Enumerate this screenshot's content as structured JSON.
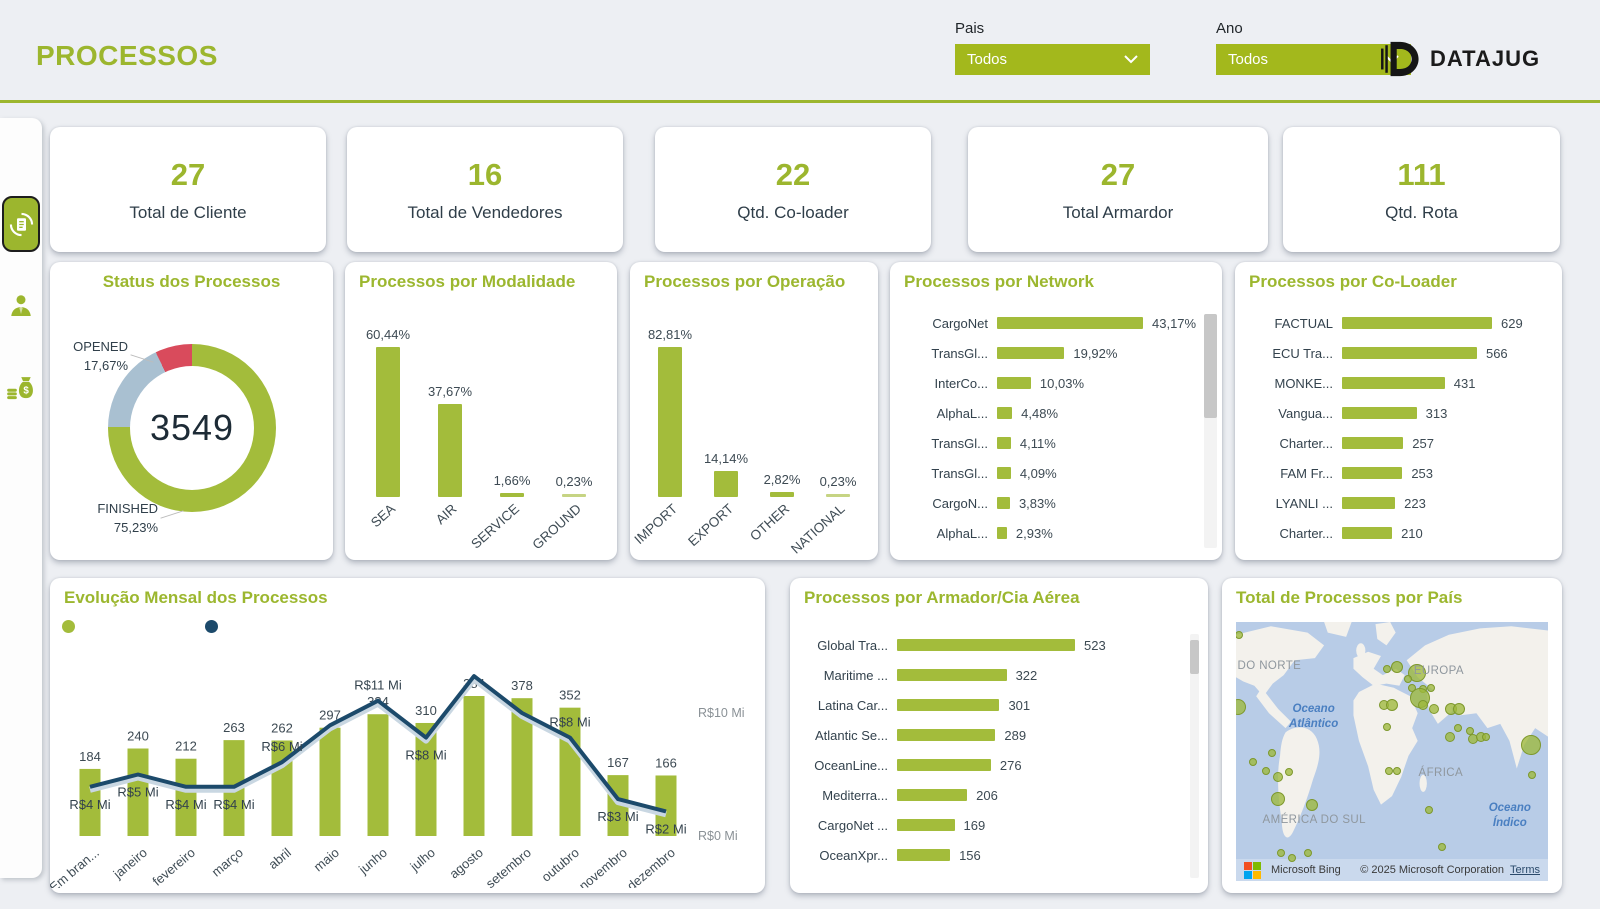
{
  "header": {
    "title": "PROCESSOS",
    "brand": "DATAJUG",
    "filters": [
      {
        "label": "Pais",
        "value": "Todos"
      },
      {
        "label": "Ano",
        "value": "Todos"
      }
    ]
  },
  "colors": {
    "accent_green": "#9cb62e",
    "bar_green": "#a3bc3b",
    "navy": "#1c4a6b",
    "halo_blue": "#c9d7e2",
    "donut_gray": "#a9c0d1",
    "donut_red": "#d94b5c",
    "dropdown_green": "#a3b81c",
    "text_dark": "#31404b",
    "axis_gray": "#8a9196",
    "water_blue": "#b8cce7",
    "land": "#f3f1ec"
  },
  "kpis": [
    {
      "value": "27",
      "label": "Total de Cliente"
    },
    {
      "value": "16",
      "label": "Total de Vendedores"
    },
    {
      "value": "22",
      "label": "Qtd. Co-loader"
    },
    {
      "value": "27",
      "label": "Total Armardor"
    },
    {
      "value": "111",
      "label": "Qtd. Rota"
    }
  ],
  "chart_data": [
    {
      "id": "status",
      "type": "pie",
      "title": "Status dos Processos",
      "center_total": "3549",
      "slices": [
        {
          "label": "FINISHED",
          "display": "75,23%",
          "pct": 75.23,
          "color": "#a3bc3b"
        },
        {
          "label": "OPENED",
          "display": "17,67%",
          "pct": 17.67,
          "color": "#a9c0d1"
        },
        {
          "label": "",
          "display": "",
          "pct": 7.1,
          "color": "#d94b5c"
        }
      ]
    },
    {
      "id": "modalidade",
      "type": "bar",
      "title": "Processos por Modalidade",
      "categories": [
        "SEA",
        "AIR",
        "SERVICE",
        "GROUND"
      ],
      "values": [
        60.44,
        37.67,
        1.66,
        0.23
      ],
      "labels": [
        "60,44%",
        "37,67%",
        "1,66%",
        "0,23%"
      ]
    },
    {
      "id": "operacao",
      "type": "bar",
      "title": "Processos por Operação",
      "categories": [
        "IMPORT",
        "EXPORT",
        "OTHER",
        "NATIONAL"
      ],
      "values": [
        82.81,
        14.14,
        2.82,
        0.23
      ],
      "labels": [
        "82,81%",
        "14,14%",
        "2,82%",
        "0,23%"
      ]
    },
    {
      "id": "network",
      "type": "barh",
      "title": "Processos por Network",
      "categories": [
        "CargoNet",
        "TransGl...",
        "InterCo...",
        "AlphaL...",
        "TransGl...",
        "TransGl...",
        "CargoN...",
        "AlphaL..."
      ],
      "values": [
        43.17,
        19.92,
        10.03,
        4.48,
        4.11,
        4.09,
        3.83,
        2.93
      ],
      "labels": [
        "43,17%",
        "19,92%",
        "10,03%",
        "4,48%",
        "4,11%",
        "4,09%",
        "3,83%",
        "2,93%"
      ]
    },
    {
      "id": "coloader",
      "type": "barh",
      "title": "Processos por Co-Loader",
      "categories": [
        "FACTUAL",
        "ECU Tra...",
        "MONKE...",
        "Vangua...",
        "Charter...",
        "FAM Fr...",
        "LYANLI ...",
        "Charter..."
      ],
      "values": [
        629,
        566,
        431,
        313,
        257,
        253,
        223,
        210
      ],
      "labels": [
        "629",
        "566",
        "431",
        "313",
        "257",
        "253",
        "223",
        "210"
      ]
    },
    {
      "id": "evolucao",
      "type": "combo",
      "title": "Evolução Mensal dos Processos",
      "categories": [
        "(Em bran...",
        "janeiro",
        "fevereiro",
        "março",
        "abril",
        "maio",
        "junho",
        "julho",
        "agosto",
        "setembro",
        "outubro",
        "novembro",
        "dezembro"
      ],
      "bars": {
        "values": [
          184,
          240,
          212,
          263,
          262,
          297,
          334,
          310,
          384,
          378,
          352,
          167,
          166
        ]
      },
      "line": {
        "values": [
          4,
          5,
          4,
          4,
          6,
          9,
          11,
          8,
          13,
          10,
          8,
          3,
          2
        ],
        "labels": [
          "R$4 Mi",
          "R$5 Mi",
          "R$4 Mi",
          "R$4 Mi",
          "R$6 Mi",
          "",
          "R$11 Mi",
          "R$8 Mi",
          "",
          "",
          "R$8 Mi",
          "R$3 Mi",
          "R$2 Mi"
        ],
        "label_pos": [
          "below",
          "below",
          "below",
          "below",
          "above",
          "",
          "above",
          "below",
          "",
          "",
          "above",
          "below",
          "below"
        ]
      },
      "y2_axis": {
        "top_label": "R$10 Mi",
        "bottom_label": "R$0 Mi",
        "max": 10,
        "min": 0
      },
      "legend_colors": [
        "#a3bc3b",
        "#1c4a6b"
      ]
    },
    {
      "id": "armador",
      "type": "barh",
      "title": "Processos por Armador/Cia Aérea",
      "categories": [
        "Global Tra...",
        "Maritime ...",
        "Latina Car...",
        "Atlantic Se...",
        "OceanLine...",
        "Mediterra...",
        "CargoNet ...",
        "OceanXpr..."
      ],
      "values": [
        523,
        322,
        301,
        289,
        276,
        206,
        169,
        156
      ],
      "labels": [
        "523",
        "322",
        "301",
        "289",
        "276",
        "206",
        "169",
        "156"
      ]
    },
    {
      "id": "mapa",
      "type": "map",
      "title": "Total de Processos por País",
      "region_labels": [
        {
          "text": "DO NORTE",
          "x": 0.5,
          "y": 14.5
        },
        {
          "text": "EUROPA",
          "x": 57,
          "y": 16.5
        },
        {
          "text": "ÁFRICA",
          "x": 58.5,
          "y": 56
        },
        {
          "text": "AMÉRICA DO SUL",
          "x": 8.5,
          "y": 74
        }
      ],
      "ocean_labels": [
        {
          "text": "Oceano\nAtlântico",
          "x": 17,
          "y": 31
        },
        {
          "text": "Oceano\nÍndico",
          "x": 81,
          "y": 69
        }
      ],
      "attribution": {
        "provider": "Microsoft Bing",
        "copyright": "© 2025 Microsoft Corporation",
        "terms_label": "Terms"
      },
      "bubbles": [
        {
          "x": 1,
          "y": 5,
          "r": 3
        },
        {
          "x": 0.5,
          "y": 33,
          "r": 7
        },
        {
          "x": 48.5,
          "y": 18,
          "r": 3
        },
        {
          "x": 51.5,
          "y": 17.5,
          "r": 5
        },
        {
          "x": 58,
          "y": 19.5,
          "r": 8
        },
        {
          "x": 55,
          "y": 22,
          "r": 3
        },
        {
          "x": 56.5,
          "y": 25.5,
          "r": 3
        },
        {
          "x": 60,
          "y": 26,
          "r": 3
        },
        {
          "x": 62.5,
          "y": 25.5,
          "r": 3
        },
        {
          "x": 59,
          "y": 29.5,
          "r": 9
        },
        {
          "x": 60,
          "y": 32,
          "r": 4
        },
        {
          "x": 63.5,
          "y": 33.5,
          "r": 4
        },
        {
          "x": 47.5,
          "y": 32,
          "r": 4
        },
        {
          "x": 50,
          "y": 32,
          "r": 5
        },
        {
          "x": 48.5,
          "y": 40.5,
          "r": 3
        },
        {
          "x": 69,
          "y": 33.5,
          "r": 5
        },
        {
          "x": 71.5,
          "y": 33.5,
          "r": 5
        },
        {
          "x": 71,
          "y": 41,
          "r": 3
        },
        {
          "x": 68.5,
          "y": 44.5,
          "r": 4
        },
        {
          "x": 75,
          "y": 42,
          "r": 3
        },
        {
          "x": 76,
          "y": 45,
          "r": 4
        },
        {
          "x": 78.5,
          "y": 44.5,
          "r": 4
        },
        {
          "x": 80,
          "y": 44.5,
          "r": 3
        },
        {
          "x": 94.5,
          "y": 47.5,
          "r": 9
        },
        {
          "x": 95,
          "y": 59,
          "r": 3
        },
        {
          "x": 11.5,
          "y": 50.5,
          "r": 3
        },
        {
          "x": 5.5,
          "y": 54,
          "r": 3
        },
        {
          "x": 9.5,
          "y": 57.5,
          "r": 3
        },
        {
          "x": 13.5,
          "y": 60,
          "r": 4
        },
        {
          "x": 17,
          "y": 58,
          "r": 3
        },
        {
          "x": 13.5,
          "y": 68.5,
          "r": 6
        },
        {
          "x": 24.5,
          "y": 70.5,
          "r": 5
        },
        {
          "x": 49,
          "y": 57.5,
          "r": 3
        },
        {
          "x": 51.5,
          "y": 57.5,
          "r": 3
        },
        {
          "x": 62,
          "y": 72.5,
          "r": 3
        },
        {
          "x": 66,
          "y": 87,
          "r": 3
        },
        {
          "x": 14.5,
          "y": 89,
          "r": 3
        },
        {
          "x": 18,
          "y": 91,
          "r": 3
        },
        {
          "x": 23,
          "y": 89,
          "r": 3
        }
      ]
    }
  ]
}
